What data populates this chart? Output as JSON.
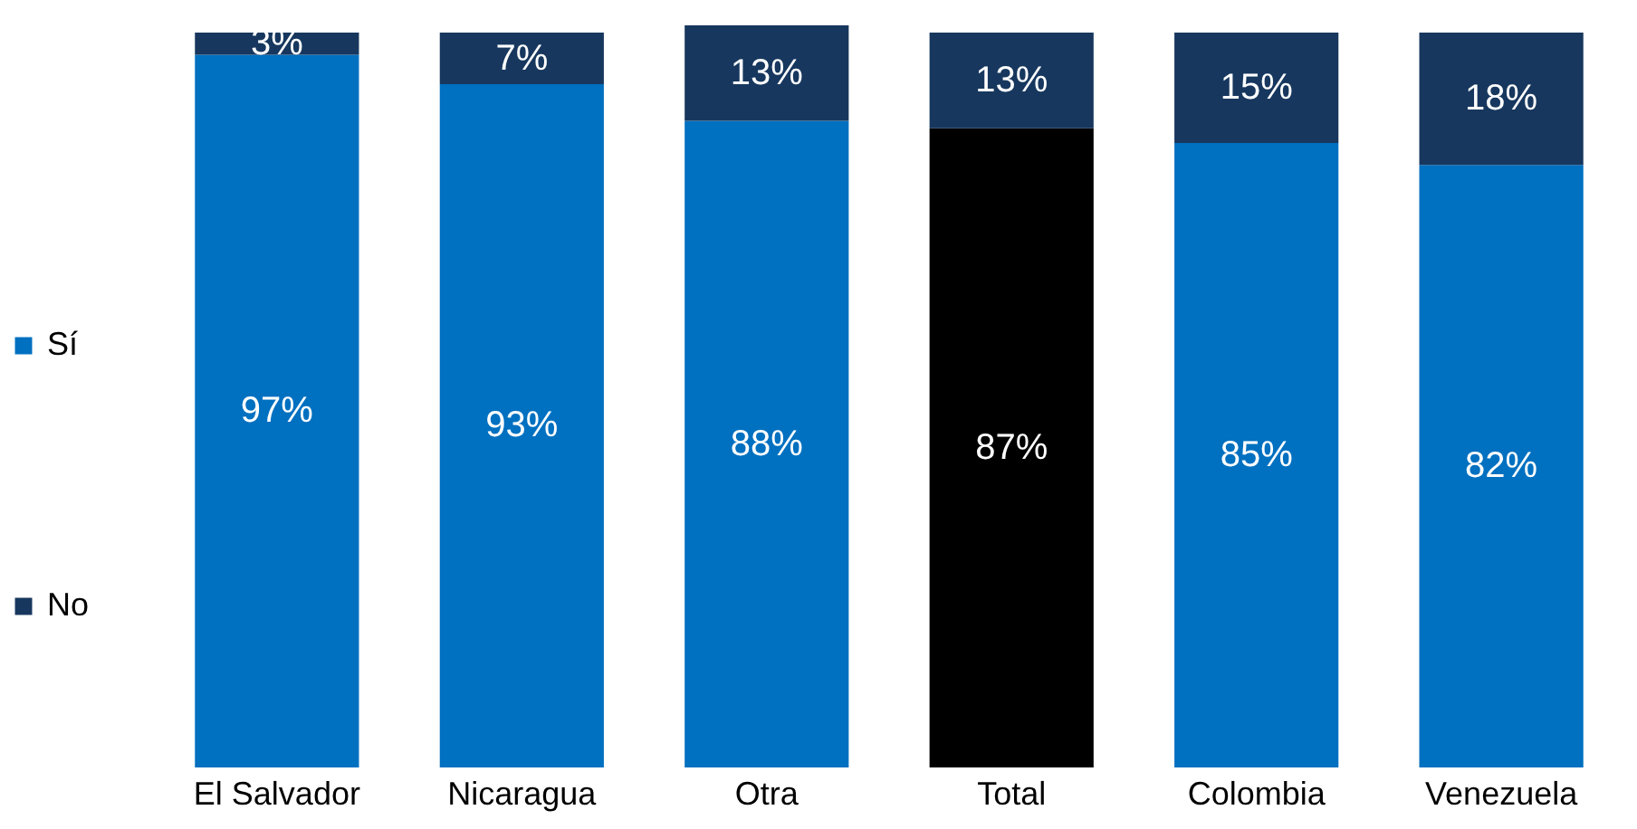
{
  "chart_data": {
    "type": "bar",
    "stacked": true,
    "legend": "left",
    "categories": [
      "El Salvador",
      "Nicaragua",
      "Otra",
      "Total",
      "Colombia",
      "Venezuela"
    ],
    "series": [
      {
        "name": "Sí",
        "color": "#0070c0",
        "colors": [
          "#0070c0",
          "#0070c0",
          "#0070c0",
          "#000000",
          "#0070c0",
          "#0070c0"
        ],
        "values": [
          97,
          93,
          88,
          87,
          85,
          82
        ],
        "value_labels": [
          "97%",
          "93%",
          "88%",
          "87%",
          "85%",
          "82%"
        ]
      },
      {
        "name": "No",
        "color": "#17375e",
        "values": [
          3,
          7,
          13,
          13,
          15,
          18
        ],
        "value_labels": [
          "3%",
          "7%",
          "13%",
          "13%",
          "15%",
          "18%"
        ]
      }
    ]
  }
}
